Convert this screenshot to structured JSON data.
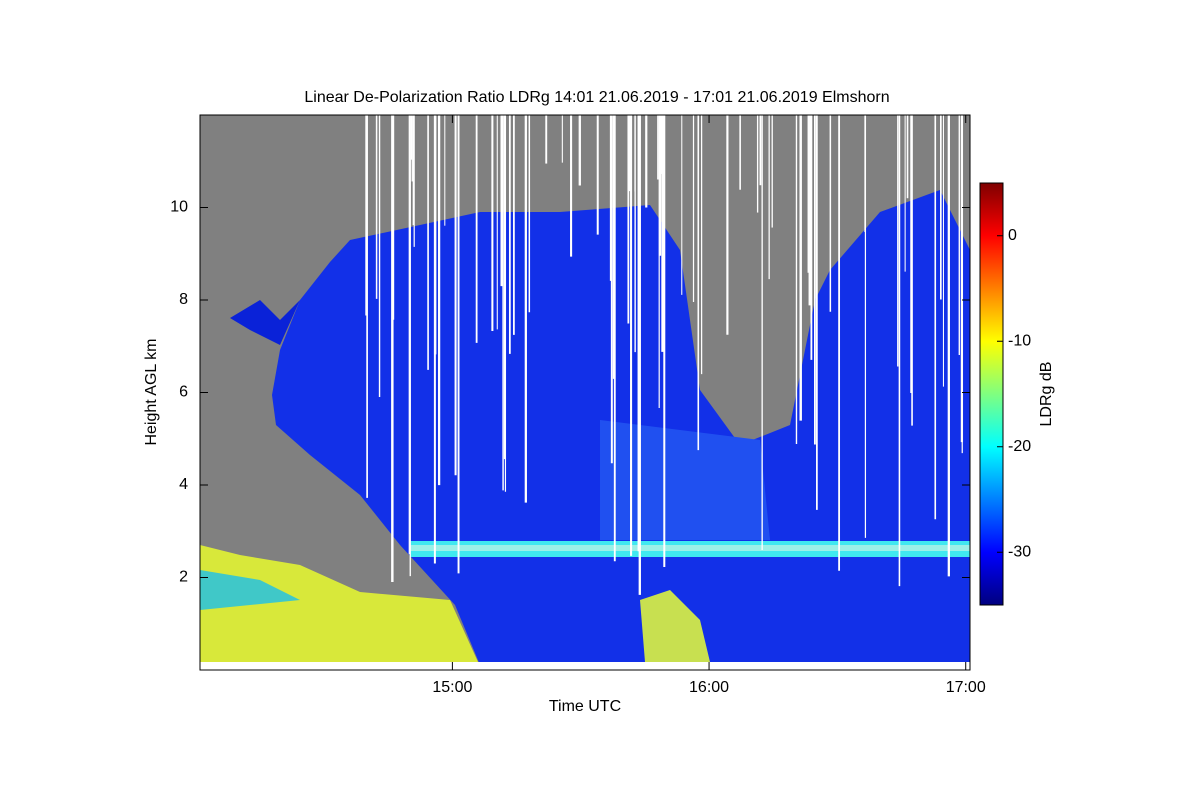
{
  "chart_data": {
    "type": "heatmap",
    "title": "Linear De-Polarization Ratio LDRg   14:01 21.06.2019 - 17:01 21.06.2019 Elmshorn",
    "x_label": "Time UTC",
    "y_label": "Height AGL km",
    "xlim": [
      "14:01",
      "17:01"
    ],
    "xticks": [
      "15:00",
      "16:00",
      "17:00"
    ],
    "ylim": [
      0,
      12
    ],
    "yticks": [
      2,
      4,
      6,
      8,
      10
    ],
    "colorbar": {
      "label": "LDRg dB",
      "colormap": "jet",
      "lim": [
        -35,
        5
      ],
      "ticks": [
        -30,
        -20,
        -10,
        0
      ]
    }
  }
}
